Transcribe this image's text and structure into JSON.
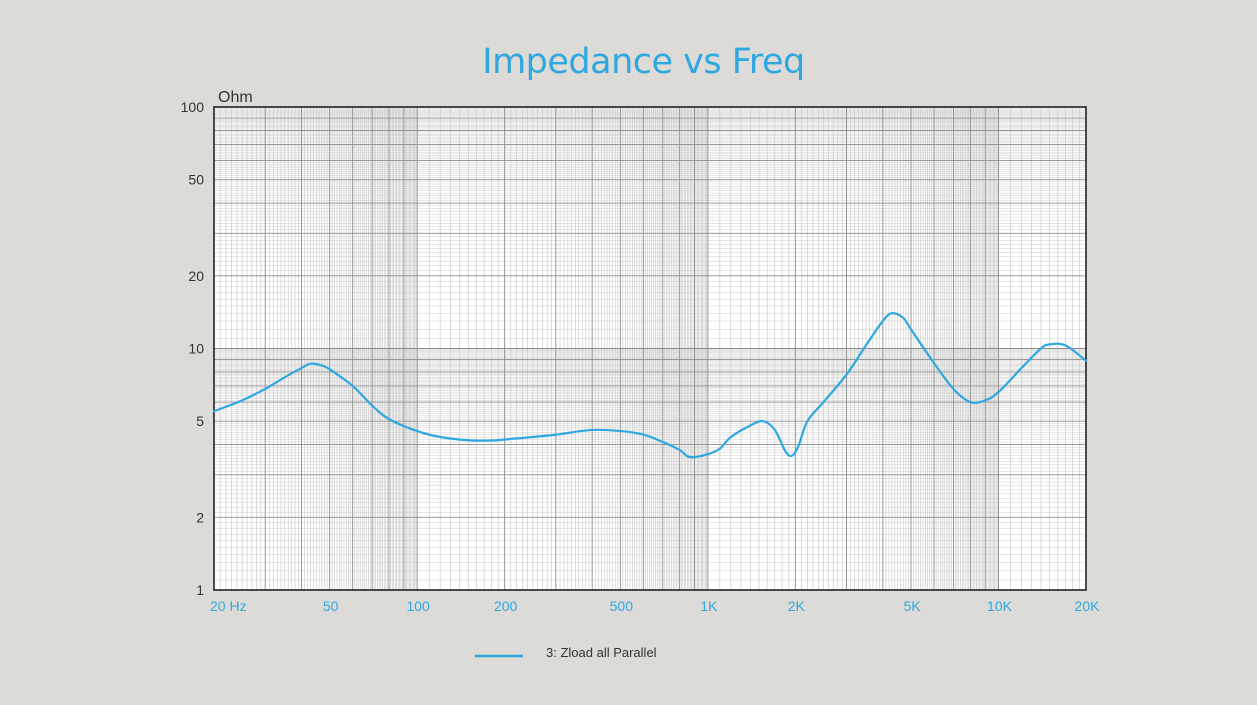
{
  "chart_data": {
    "type": "line",
    "title": "Impedance vs Freq",
    "y_unit_label": "Ohm",
    "x_scale": "log",
    "y_scale": "log",
    "xlim": [
      20,
      20000
    ],
    "ylim": [
      1,
      100
    ],
    "grid": true,
    "x_ticks": [
      {
        "value": 20,
        "label": "20  Hz"
      },
      {
        "value": 50,
        "label": "50"
      },
      {
        "value": 100,
        "label": "100"
      },
      {
        "value": 200,
        "label": "200"
      },
      {
        "value": 500,
        "label": "500"
      },
      {
        "value": 1000,
        "label": "1K"
      },
      {
        "value": 2000,
        "label": "2K"
      },
      {
        "value": 5000,
        "label": "5K"
      },
      {
        "value": 10000,
        "label": "10K"
      },
      {
        "value": 20000,
        "label": "20K"
      }
    ],
    "y_ticks": [
      {
        "value": 1,
        "label": "1"
      },
      {
        "value": 2,
        "label": "2"
      },
      {
        "value": 5,
        "label": "5"
      },
      {
        "value": 10,
        "label": "10"
      },
      {
        "value": 20,
        "label": "20"
      },
      {
        "value": 50,
        "label": "50"
      },
      {
        "value": 100,
        "label": "100"
      }
    ],
    "legend_position": "bottom-center",
    "series": [
      {
        "name": "3: Zload all Parallel",
        "color": "#2fa8e0",
        "x": [
          20,
          25,
          30,
          35,
          40,
          43,
          47,
          50,
          60,
          70,
          80,
          100,
          120,
          150,
          180,
          200,
          250,
          300,
          400,
          500,
          600,
          700,
          800,
          850,
          900,
          1000,
          1100,
          1200,
          1400,
          1550,
          1700,
          1850,
          1950,
          2050,
          2200,
          2500,
          3000,
          3500,
          4000,
          4300,
          4700,
          5000,
          6000,
          7000,
          8000,
          9000,
          10000,
          12000,
          14000,
          15000,
          17000,
          20000
        ],
        "y": [
          5.5,
          6.1,
          6.8,
          7.6,
          8.3,
          8.65,
          8.5,
          8.2,
          7.0,
          5.8,
          5.1,
          4.55,
          4.3,
          4.17,
          4.16,
          4.2,
          4.3,
          4.4,
          4.6,
          4.55,
          4.4,
          4.1,
          3.8,
          3.58,
          3.55,
          3.65,
          3.85,
          4.3,
          4.8,
          5.0,
          4.6,
          3.75,
          3.6,
          3.95,
          5.0,
          6.0,
          7.8,
          10.3,
          13.0,
          14.0,
          13.4,
          12.0,
          8.7,
          6.8,
          6.0,
          6.1,
          6.6,
          8.3,
          10.0,
          10.4,
          10.3,
          8.9
        ]
      }
    ]
  }
}
